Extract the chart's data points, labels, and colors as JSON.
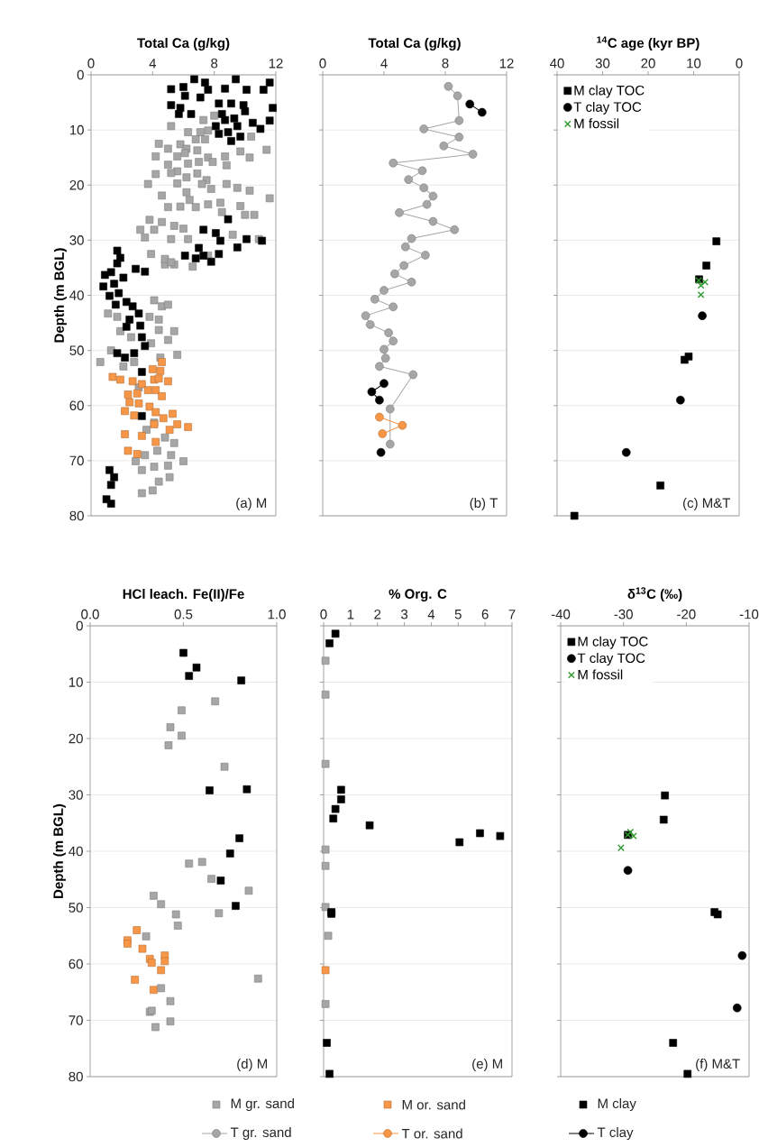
{
  "chart_data": [
    {
      "type": "scatter",
      "xlabel": "Total Ca (g/kg)",
      "ylabel": "Depth (m BGL)",
      "xlim": [
        0,
        12
      ],
      "xticks": [
        0,
        4,
        8,
        12
      ],
      "ylim": [
        80,
        0
      ],
      "yticks": [
        0,
        10,
        20,
        30,
        40,
        50,
        60,
        70,
        80
      ],
      "grid": "y",
      "legend": "bottom",
      "annotations": [
        "(a)  M"
      ],
      "series": [
        {
          "name": "M gr. sand",
          "color": "#a6a6a6",
          "marker": "square",
          "x": [
            8.0,
            7.3,
            5.2,
            6.3,
            7.1,
            7.6,
            10.4,
            11.4,
            4.4,
            5.0,
            5.8,
            6.2,
            6.8,
            7.4,
            4.2,
            5.6,
            6.1,
            6.9,
            7.6,
            8.7,
            9.7,
            10.3,
            5.0,
            5.6,
            6.3,
            7.0,
            7.9,
            8.8,
            4.2,
            5.2,
            6.2,
            6.9,
            7.5,
            3.7,
            4.6,
            5.6,
            6.2,
            7.2,
            7.8,
            8.8,
            9.5,
            10.3,
            11.6,
            5.0,
            5.8,
            6.4,
            6.8,
            7.6,
            8.4,
            9.7,
            8.5,
            10.0,
            10.6,
            3.8,
            4.6,
            3.2,
            3.5,
            4.1,
            5.4,
            6.0,
            5.2,
            3.9,
            4.8,
            5.4,
            6.3,
            9.2,
            10.9,
            7.6,
            4.8,
            6.6,
            5.2,
            4.1,
            4.6,
            5.0,
            1.1,
            1.7,
            3.8,
            4.4,
            1.9,
            2.6,
            4.4,
            5.4,
            5.0,
            3.9,
            1.3,
            5.6,
            0.6,
            2.1,
            2.8,
            4.5,
            3.1,
            3.6,
            4.1,
            4.8,
            5.4,
            2.9,
            3.5,
            4.3,
            5.2,
            6.0,
            3.3,
            4.1,
            5.0,
            4.4,
            5.1,
            3.3,
            4.0
          ],
          "values": [
            7.4,
            8.2,
            9.3,
            10.4,
            10.4,
            10.1,
            11.2,
            13.6,
            12.5,
            13.4,
            12.6,
            13.4,
            11.7,
            11.7,
            14.8,
            14.8,
            14.2,
            13.7,
            15.0,
            14.8,
            13.9,
            15.0,
            16.3,
            17.5,
            16.1,
            15.8,
            15.8,
            16.4,
            18.0,
            17.8,
            18.6,
            17.9,
            19.1,
            19.8,
            21.9,
            19.7,
            21.3,
            19.8,
            20.7,
            19.8,
            20.5,
            21.0,
            22.4,
            24.0,
            23.9,
            22.7,
            24.0,
            23.5,
            23.2,
            23.8,
            24.9,
            25.4,
            25.4,
            26.3,
            26.7,
            28.1,
            29.5,
            28.1,
            27.4,
            27.9,
            29.8,
            32.5,
            34.4,
            34.4,
            29.8,
            29.0,
            29.8,
            32.8,
            33.4,
            34.8,
            34.0,
            40.9,
            42.0,
            41.7,
            43.3,
            43.9,
            43.9,
            44.4,
            46.5,
            47.6,
            46.3,
            46.5,
            48.1,
            48.7,
            50.0,
            50.8,
            52.1,
            52.9,
            52.1,
            51.3,
            56.7,
            64.4,
            63.1,
            65.8,
            66.8,
            70.1,
            69.0,
            68.2,
            69.0,
            70.1,
            71.7,
            71.1,
            70.9,
            73.8,
            73.0,
            75.9,
            75.4
          ]
        },
        {
          "name": "M or. sand",
          "color": "#f79646",
          "marker": "square",
          "x": [
            4.6,
            4.0,
            4.5,
            1.4,
            1.9,
            2.7,
            3.3,
            4.1,
            4.4,
            5.0,
            2.4,
            3.0,
            3.7,
            4.2,
            4.6,
            2.5,
            3.1,
            3.8,
            4.2,
            2.2,
            2.8,
            4.7,
            5.3,
            5.6,
            6.3,
            2.2,
            3.3,
            4.1,
            4.2,
            2.4,
            3.0,
            5.1
          ],
          "values": [
            52.1,
            53.4,
            53.7,
            54.8,
            55.3,
            55.6,
            56.1,
            55.3,
            55.1,
            55.6,
            58.0,
            57.8,
            57.2,
            57.2,
            58.3,
            59.4,
            59.6,
            60.2,
            61.2,
            61.0,
            61.8,
            62.3,
            61.5,
            63.4,
            63.9,
            65.2,
            65.5,
            63.4,
            66.6,
            68.2,
            68.8,
            64.4
          ]
        },
        {
          "name": "M clay",
          "color": "#000000",
          "marker": "square",
          "x": [
            6.7,
            7.4,
            9.4,
            11.6,
            5.2,
            6.0,
            7.6,
            7.1,
            8.7,
            10.1,
            11.2,
            6.1,
            5.2,
            5.8,
            6.5,
            5.7,
            8.3,
            9.1,
            9.9,
            10.0,
            11.8,
            11.6,
            10.5,
            11.0,
            8.1,
            8.7,
            9.3,
            9.5,
            8.9,
            8.3,
            9.1,
            9.7,
            8.5,
            8.9,
            7.3,
            8.1,
            8.4,
            10.1,
            9.5,
            11.1,
            7.0,
            7.3,
            6.1,
            7.8,
            8.3,
            6.8,
            1.7,
            1.9,
            1.7,
            0.9,
            1.3,
            0.8,
            1.5,
            2.1,
            2.9,
            3.5,
            1.2,
            1.8,
            2.3,
            1.6,
            2.7,
            3.1,
            2.5,
            3.2,
            2.3,
            3.3,
            3.5,
            2.8,
            1.7,
            2.2,
            3.3,
            3.3,
            1.2,
            1.5,
            1.3,
            1.0,
            1.3
          ],
          "values": [
            0.8,
            1.4,
            0.8,
            1.4,
            2.6,
            2.2,
            2.7,
            4.1,
            2.5,
            2.7,
            2.7,
            3.8,
            5.5,
            6.0,
            7.1,
            7.1,
            5.2,
            5.2,
            5.5,
            6.6,
            6.0,
            8.3,
            8.7,
            9.8,
            9.3,
            8.2,
            7.9,
            9.3,
            10.4,
            10.7,
            12.0,
            11.2,
            7.1,
            26.2,
            28.1,
            28.7,
            30.1,
            29.8,
            31.3,
            30.1,
            31.4,
            32.8,
            32.8,
            33.9,
            32.5,
            33.3,
            31.9,
            33.2,
            34.2,
            36.3,
            35.8,
            38.4,
            37.9,
            36.8,
            35.2,
            35.7,
            40.1,
            39.6,
            41.2,
            41.7,
            42.0,
            43.3,
            44.4,
            45.5,
            45.7,
            47.6,
            49.2,
            50.5,
            50.5,
            51.3,
            53.9,
            61.9,
            71.7,
            73.0,
            74.4,
            77.0,
            77.8
          ]
        }
      ]
    },
    {
      "type": "line",
      "xlabel": "Total Ca (g/kg)",
      "xlim": [
        0,
        12
      ],
      "xticks": [
        0,
        4,
        8,
        12
      ],
      "ylim": [
        80,
        0
      ],
      "yticks": [
        0,
        10,
        20,
        30,
        40,
        50,
        60,
        70,
        80
      ],
      "grid": "y",
      "tick_labels": "x",
      "legend": "bottom",
      "annotations": [
        "(b)  T"
      ],
      "series": [
        {
          "name": "T gr. sand",
          "color": "#a6a6a6",
          "marker": "circle",
          "x": [
            8.2,
            8.8,
            8.9,
            6.6,
            8.9,
            7.9,
            9.8,
            4.6,
            6.5,
            5.6,
            6.6,
            7.2,
            6.8,
            5.0,
            7.2,
            8.6,
            5.8,
            5.4,
            6.7,
            5.3,
            4.7,
            5.8,
            4.0,
            3.4,
            4.6,
            2.8,
            3.1,
            4.3,
            4.6,
            4.0,
            4.1,
            3.7,
            5.9,
            4.4,
            4.4
          ],
          "values": [
            2.1,
            3.8,
            8.3,
            9.8,
            11.3,
            12.9,
            14.4,
            16.0,
            17.4,
            19.0,
            20.5,
            22.0,
            23.5,
            25.0,
            26.6,
            28.1,
            29.7,
            31.2,
            32.7,
            34.6,
            36.1,
            37.6,
            39.1,
            40.7,
            42.1,
            43.7,
            45.3,
            46.8,
            48.3,
            49.8,
            51.4,
            52.9,
            54.4,
            60.6,
            67.0
          ]
        },
        {
          "name": "T or. sand",
          "color": "#f79646",
          "marker": "circle",
          "x": [
            3.7,
            5.2,
            3.9
          ],
          "values": [
            62.1,
            63.6,
            65.1
          ]
        },
        {
          "name": "T clay",
          "color": "#000000",
          "marker": "circle",
          "x": [
            9.6,
            10.4
          ],
          "values": [
            5.3,
            6.8
          ]
        },
        {
          "color": "#000000",
          "marker": "circle",
          "x": [
            4.0,
            3.2,
            3.7
          ],
          "values": [
            56.0,
            57.5,
            59.0
          ]
        },
        {
          "color": "#000000",
          "marker": "circle",
          "x": [
            3.8
          ],
          "values": [
            68.5
          ]
        }
      ]
    },
    {
      "type": "scatter",
      "xlabel": "$^{14}$C age (kyr BP)",
      "xlim": [
        40,
        0
      ],
      "xticks": [
        40,
        30,
        20,
        10,
        0
      ],
      "ylim": [
        80,
        0
      ],
      "yticks": [
        0,
        10,
        20,
        30,
        40,
        50,
        60,
        70,
        80
      ],
      "grid": "y",
      "tick_labels": "x",
      "legend": "top left",
      "annotations": [
        "(c)  M&T"
      ],
      "series": [
        {
          "name": "M clay TOC",
          "color": "#000000",
          "marker": "square",
          "x": [
            5.0,
            7.2,
            8.8,
            11.1,
            12.0,
            17.3,
            36.2
          ],
          "values": [
            30.2,
            34.6,
            37.1,
            51.1,
            51.7,
            74.5,
            80.0
          ]
        },
        {
          "name": "T clay TOC",
          "color": "#000000",
          "marker": "circle",
          "x": [
            8.1,
            12.9,
            24.8
          ],
          "values": [
            43.7,
            59.0,
            68.5
          ]
        },
        {
          "name": "M fossil",
          "color": "#2e9a2e",
          "marker": "cross",
          "x": [
            8.9,
            7.5,
            8.4,
            8.4
          ],
          "values": [
            37.3,
            37.6,
            38.2,
            39.9
          ]
        }
      ]
    },
    {
      "type": "scatter",
      "xlabel": "HCl leach. Fe(II)/Fe",
      "ylabel": "Depth (m BGL)",
      "xlim": [
        0,
        1
      ],
      "xticks": [
        {
          "value": 0,
          "label": "0.0"
        },
        {
          "value": 0.5,
          "label": "0.5"
        },
        {
          "value": 1,
          "label": "1.0"
        }
      ],
      "ylim": [
        80,
        0
      ],
      "yticks": [
        0,
        10,
        20,
        30,
        40,
        50,
        60,
        70,
        80
      ],
      "grid": "y",
      "annotations": [
        "(d)  M"
      ],
      "series": [
        {
          "color": "#a6a6a6",
          "marker": "square",
          "x": [
            0.67,
            0.49,
            0.43,
            0.49,
            0.42,
            0.72,
            0.53,
            0.6,
            0.65,
            0.85,
            0.34,
            0.38,
            0.46,
            0.47,
            0.69,
            0.3,
            0.9,
            0.38,
            0.43,
            0.32,
            0.33,
            0.43,
            0.35
          ],
          "values": [
            13.4,
            15.0,
            18.0,
            19.5,
            21.2,
            25.0,
            42.2,
            41.9,
            44.9,
            47.0,
            47.9,
            49.4,
            51.2,
            53.2,
            51.0,
            55.1,
            62.6,
            64.3,
            66.6,
            68.5,
            68.3,
            70.2,
            71.2
          ]
        },
        {
          "color": "#f79646",
          "marker": "square",
          "x": [
            0.25,
            0.2,
            0.2,
            0.28,
            0.32,
            0.4,
            0.33,
            0.4,
            0.38,
            0.24,
            0.34
          ],
          "values": [
            54.0,
            55.8,
            56.4,
            57.3,
            59.1,
            58.5,
            59.8,
            59.5,
            61.1,
            62.8,
            64.6
          ]
        },
        {
          "color": "#000000",
          "marker": "square",
          "x": [
            0.5,
            0.57,
            0.53,
            0.81,
            0.64,
            0.84,
            0.8,
            0.75,
            0.7,
            0.78
          ],
          "values": [
            4.8,
            7.4,
            8.9,
            9.7,
            29.2,
            29.0,
            37.7,
            40.4,
            45.2,
            49.7
          ]
        }
      ]
    },
    {
      "type": "scatter",
      "xlabel": "% Org. C",
      "xlim": [
        0,
        7
      ],
      "xticks": [
        0,
        1,
        2,
        3,
        4,
        5,
        6,
        7
      ],
      "ylim": [
        80,
        0
      ],
      "yticks": [
        0,
        10,
        20,
        30,
        40,
        50,
        60,
        70,
        80
      ],
      "grid": "y",
      "tick_labels": "x",
      "annotations": [
        "(e)  M"
      ],
      "series": [
        {
          "color": "#a6a6a6",
          "marker": "square",
          "x": [
            0.07,
            0.07,
            0.07,
            0.07,
            0.07,
            0.07,
            0.17,
            0.07
          ],
          "values": [
            6.2,
            12.2,
            24.5,
            39.7,
            42.6,
            49.9,
            55.0,
            67.1
          ]
        },
        {
          "color": "#f79646",
          "marker": "square",
          "x": [
            0.07
          ],
          "values": [
            61.1
          ]
        },
        {
          "color": "#000000",
          "marker": "square",
          "x": [
            0.44,
            0.22,
            0.65,
            0.65,
            0.44,
            0.36,
            1.71,
            5.05,
            5.81,
            6.56,
            0.29,
            0.29,
            0.12,
            0.22
          ],
          "values": [
            1.4,
            3.1,
            29.1,
            30.8,
            32.5,
            34.2,
            35.4,
            38.4,
            36.8,
            37.3,
            51.1,
            50.8,
            74.0,
            79.5
          ]
        }
      ]
    },
    {
      "type": "scatter",
      "xlabel": "δ$^{13}$C (‰)",
      "xlim": [
        -40,
        -10
      ],
      "xticks": [
        -40,
        -30,
        -20,
        -10
      ],
      "ylim": [
        80,
        0
      ],
      "yticks": [
        0,
        10,
        20,
        30,
        40,
        50,
        60,
        70,
        80
      ],
      "grid": "y",
      "tick_labels": "x",
      "legend": "top left",
      "annotations": [
        "(f)  M&T"
      ],
      "series": [
        {
          "name": "M clay TOC",
          "color": "#000000",
          "marker": "square",
          "x": [
            -23.4,
            -23.6,
            -29.3,
            -15.5,
            -15.0,
            -22.1,
            -19.8
          ],
          "values": [
            30.1,
            34.4,
            37.1,
            50.8,
            51.2,
            74.0,
            79.5
          ]
        },
        {
          "name": "T clay TOC",
          "color": "#000000",
          "marker": "circle",
          "x": [
            -29.3,
            -11.1,
            -11.9
          ],
          "values": [
            43.4,
            58.5,
            67.8
          ]
        },
        {
          "name": "M fossil",
          "color": "#2e9a2e",
          "marker": "cross",
          "x": [
            -29.3,
            -28.4,
            -30.4,
            -28.9
          ],
          "values": [
            37.1,
            37.3,
            39.4,
            36.6
          ]
        }
      ]
    }
  ]
}
